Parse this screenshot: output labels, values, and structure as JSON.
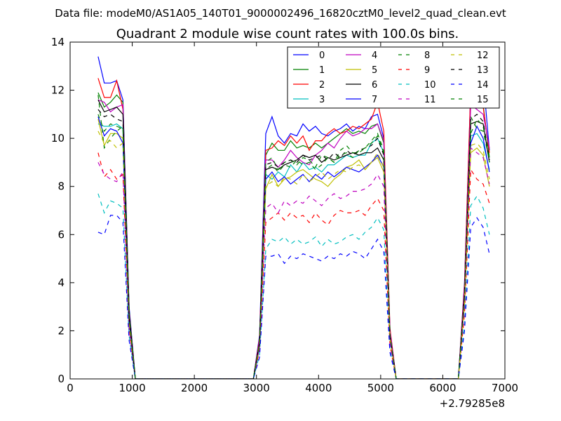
{
  "header": {
    "datafile": "Data file: modeM0/AS1A05_140T01_9000002496_16820cztM0_level2_quad_clean.evt"
  },
  "chart_data": {
    "type": "line",
    "title": "Quadrant 2 module wise count rates with 100.0s bins.",
    "xlabel": "",
    "ylabel": "",
    "x_offset_label": "+2.79285e8",
    "xlim": [
      0,
      7000
    ],
    "ylim": [
      0,
      14
    ],
    "x_ticks": [
      "0",
      "1000",
      "2000",
      "3000",
      "4000",
      "5000",
      "6000",
      "7000"
    ],
    "y_ticks": [
      "0",
      "2",
      "4",
      "6",
      "8",
      "10",
      "12",
      "14"
    ],
    "grid": false,
    "legend_position": "top-right",
    "x": [
      450,
      550,
      650,
      750,
      850,
      950,
      1050,
      1150,
      1250,
      1350,
      1450,
      1550,
      1650,
      1750,
      1850,
      1950,
      2050,
      2150,
      2250,
      2350,
      2450,
      2550,
      2650,
      2750,
      2850,
      2950,
      3050,
      3150,
      3250,
      3350,
      3450,
      3550,
      3650,
      3750,
      3850,
      3950,
      4050,
      4150,
      4250,
      4350,
      4450,
      4550,
      4650,
      4750,
      4850,
      4950,
      5050,
      5150,
      5250,
      5350,
      5450,
      5550,
      5650,
      5750,
      5850,
      5950,
      6050,
      6150,
      6250,
      6350,
      6450,
      6550,
      6650,
      6750
    ],
    "series": [
      {
        "name": "0",
        "color": "#0000ff",
        "dash": "solid",
        "values": [
          13.4,
          12.3,
          12.3,
          12.4,
          11.6,
          3.0,
          0,
          0,
          0,
          0,
          0,
          0,
          0,
          0,
          0,
          0,
          0,
          0,
          0,
          0,
          0,
          0,
          0,
          0,
          0,
          0,
          1.8,
          10.2,
          10.9,
          10.1,
          9.8,
          10.2,
          10.1,
          10.6,
          10.3,
          10.5,
          10.2,
          10.1,
          10.3,
          10.4,
          10.6,
          10.3,
          10.5,
          10.4,
          10.9,
          11.0,
          10.0,
          2.0,
          0,
          0,
          0,
          0,
          0,
          0,
          0,
          0,
          0,
          0,
          0,
          4.0,
          12.0,
          12.4,
          12.5,
          9.5
        ]
      },
      {
        "name": "1",
        "color": "#008000",
        "dash": "solid",
        "values": [
          11.9,
          11.3,
          11.5,
          11.8,
          11.5,
          2.9,
          0,
          0,
          0,
          0,
          0,
          0,
          0,
          0,
          0,
          0,
          0,
          0,
          0,
          0,
          0,
          0,
          0,
          0,
          0,
          0,
          1.6,
          9.3,
          9.8,
          9.5,
          9.5,
          9.9,
          9.6,
          9.7,
          9.6,
          9.8,
          9.6,
          9.8,
          10.0,
          10.2,
          10.4,
          10.2,
          10.3,
          10.2,
          10.5,
          10.6,
          9.8,
          1.9,
          0,
          0,
          0,
          0,
          0,
          0,
          0,
          0,
          0,
          0,
          0,
          3.8,
          11.7,
          11.3,
          11.4,
          9.2
        ]
      },
      {
        "name": "2",
        "color": "#ff0000",
        "dash": "solid",
        "values": [
          12.5,
          11.7,
          11.7,
          12.4,
          11.2,
          2.8,
          0,
          0,
          0,
          0,
          0,
          0,
          0,
          0,
          0,
          0,
          0,
          0,
          0,
          0,
          0,
          0,
          0,
          0,
          0,
          0,
          1.7,
          9.5,
          9.6,
          9.9,
          9.7,
          10.1,
          9.8,
          10.1,
          9.5,
          9.9,
          9.9,
          10.2,
          10.4,
          10.2,
          10.3,
          10.5,
          10.4,
          10.6,
          10.8,
          11.5,
          10.3,
          2.1,
          0,
          0,
          0,
          0,
          0,
          0,
          0,
          0,
          0,
          0,
          0,
          3.9,
          12.1,
          11.5,
          11.3,
          9.4
        ]
      },
      {
        "name": "3",
        "color": "#00bfbf",
        "dash": "solid",
        "values": [
          10.6,
          10.5,
          10.5,
          10.6,
          10.4,
          2.6,
          0,
          0,
          0,
          0,
          0,
          0,
          0,
          0,
          0,
          0,
          0,
          0,
          0,
          0,
          0,
          0,
          0,
          0,
          0,
          0,
          1.5,
          8.5,
          8.3,
          8.6,
          8.4,
          8.9,
          8.6,
          9.0,
          8.7,
          8.8,
          8.6,
          8.9,
          8.9,
          9.1,
          9.3,
          9.2,
          9.3,
          9.3,
          9.8,
          10.0,
          9.4,
          1.8,
          0,
          0,
          0,
          0,
          0,
          0,
          0,
          0,
          0,
          0,
          0,
          3.4,
          10.1,
          10.2,
          9.8,
          8.7
        ]
      },
      {
        "name": "4",
        "color": "#bf00bf",
        "dash": "solid",
        "values": [
          11.6,
          11.5,
          11.1,
          11.3,
          11.4,
          2.8,
          0,
          0,
          0,
          0,
          0,
          0,
          0,
          0,
          0,
          0,
          0,
          0,
          0,
          0,
          0,
          0,
          0,
          0,
          0,
          0,
          1.6,
          9.1,
          9.1,
          8.8,
          9.1,
          9.5,
          9.2,
          9.0,
          8.9,
          9.3,
          9.5,
          9.8,
          9.6,
          10.0,
          10.3,
          10.1,
          10.2,
          10.4,
          10.4,
          10.6,
          9.9,
          2.0,
          0,
          0,
          0,
          0,
          0,
          0,
          0,
          0,
          0,
          0,
          0,
          3.7,
          11.4,
          11.2,
          11.0,
          9.6
        ]
      },
      {
        "name": "5",
        "color": "#bfbf00",
        "dash": "solid",
        "values": [
          10.8,
          9.7,
          10.2,
          10.2,
          10.0,
          2.5,
          0,
          0,
          0,
          0,
          0,
          0,
          0,
          0,
          0,
          0,
          0,
          0,
          0,
          0,
          0,
          0,
          0,
          0,
          0,
          0,
          1.4,
          7.9,
          8.5,
          8.0,
          8.3,
          8.4,
          8.6,
          8.7,
          8.5,
          8.3,
          8.2,
          8.0,
          8.3,
          8.5,
          8.8,
          8.9,
          9.1,
          8.7,
          9.0,
          9.2,
          8.6,
          1.7,
          0,
          0,
          0,
          0,
          0,
          0,
          0,
          0,
          0,
          0,
          0,
          3.2,
          9.4,
          9.6,
          9.3,
          8.0
        ]
      },
      {
        "name": "6",
        "color": "#000000",
        "dash": "solid",
        "values": [
          11.6,
          11.1,
          11.2,
          11.3,
          11.0,
          2.7,
          0,
          0,
          0,
          0,
          0,
          0,
          0,
          0,
          0,
          0,
          0,
          0,
          0,
          0,
          0,
          0,
          0,
          0,
          0,
          0,
          1.5,
          8.7,
          8.8,
          8.7,
          8.9,
          9.0,
          9.1,
          9.3,
          9.2,
          9.3,
          9.0,
          9.2,
          9.1,
          9.2,
          9.3,
          9.4,
          9.3,
          9.4,
          9.4,
          9.6,
          9.1,
          1.8,
          0,
          0,
          0,
          0,
          0,
          0,
          0,
          0,
          0,
          0,
          0,
          3.5,
          10.6,
          10.7,
          10.6,
          9.0
        ]
      },
      {
        "name": "7",
        "color": "#0000ff",
        "dash": "solid",
        "values": [
          10.9,
          10.1,
          10.4,
          10.3,
          9.8,
          2.4,
          0,
          0,
          0,
          0,
          0,
          0,
          0,
          0,
          0,
          0,
          0,
          0,
          0,
          0,
          0,
          0,
          0,
          0,
          0,
          0,
          1.4,
          8.3,
          8.6,
          8.2,
          8.4,
          8.1,
          8.3,
          8.5,
          8.2,
          8.5,
          8.3,
          8.6,
          8.4,
          8.6,
          8.8,
          8.7,
          8.6,
          8.8,
          9.0,
          9.3,
          8.8,
          1.7,
          0,
          0,
          0,
          0,
          0,
          0,
          0,
          0,
          0,
          0,
          0,
          3.3,
          9.8,
          10.5,
          10.0,
          8.6
        ]
      },
      {
        "name": "8",
        "color": "#008000",
        "dash": "dash",
        "values": [
          11.8,
          9.6,
          10.0,
          10.3,
          10.5,
          2.6,
          0,
          0,
          0,
          0,
          0,
          0,
          0,
          0,
          0,
          0,
          0,
          0,
          0,
          0,
          0,
          0,
          0,
          0,
          0,
          0,
          1.5,
          9.0,
          9.2,
          8.7,
          9.0,
          9.1,
          8.9,
          9.2,
          9.1,
          8.8,
          9.3,
          9.2,
          9.0,
          9.5,
          9.7,
          9.4,
          9.4,
          9.6,
          9.9,
          10.2,
          9.5,
          1.8,
          0,
          0,
          0,
          0,
          0,
          0,
          0,
          0,
          0,
          0,
          0,
          3.4,
          10.2,
          10.8,
          10.5,
          9.0
        ]
      },
      {
        "name": "9",
        "color": "#ff0000",
        "dash": "dash",
        "values": [
          9.4,
          8.4,
          8.7,
          8.3,
          8.5,
          2.1,
          0,
          0,
          0,
          0,
          0,
          0,
          0,
          0,
          0,
          0,
          0,
          0,
          0,
          0,
          0,
          0,
          0,
          0,
          0,
          0,
          1.2,
          6.5,
          6.7,
          6.9,
          6.6,
          6.9,
          6.7,
          6.8,
          6.5,
          6.9,
          6.6,
          6.4,
          6.8,
          7.0,
          6.9,
          6.9,
          7.0,
          6.8,
          7.2,
          7.5,
          7.0,
          1.4,
          0,
          0,
          0,
          0,
          0,
          0,
          0,
          0,
          0,
          0,
          0,
          2.7,
          8.7,
          8.3,
          8.1,
          7.3
        ]
      },
      {
        "name": "10",
        "color": "#00bfbf",
        "dash": "dash",
        "values": [
          7.7,
          6.9,
          7.4,
          7.3,
          7.1,
          1.8,
          0,
          0,
          0,
          0,
          0,
          0,
          0,
          0,
          0,
          0,
          0,
          0,
          0,
          0,
          0,
          0,
          0,
          0,
          0,
          0,
          1.0,
          5.4,
          5.8,
          5.7,
          5.9,
          5.6,
          5.8,
          5.6,
          5.7,
          5.9,
          5.5,
          5.8,
          5.6,
          5.7,
          5.9,
          6.0,
          5.8,
          6.1,
          6.3,
          6.7,
          6.2,
          1.2,
          0,
          0,
          0,
          0,
          0,
          0,
          0,
          0,
          0,
          0,
          0,
          2.3,
          7.2,
          7.6,
          7.1,
          6.0
        ]
      },
      {
        "name": "11",
        "color": "#bf00bf",
        "dash": "dash",
        "values": [
          9.0,
          8.5,
          8.3,
          8.2,
          8.6,
          2.1,
          0,
          0,
          0,
          0,
          0,
          0,
          0,
          0,
          0,
          0,
          0,
          0,
          0,
          0,
          0,
          0,
          0,
          0,
          0,
          0,
          1.3,
          7.1,
          7.3,
          6.9,
          7.4,
          7.2,
          7.4,
          7.3,
          7.6,
          7.4,
          7.2,
          7.5,
          7.7,
          7.5,
          7.6,
          7.8,
          7.8,
          7.9,
          8.1,
          8.5,
          8.0,
          1.5,
          0,
          0,
          0,
          0,
          0,
          0,
          0,
          0,
          0,
          0,
          0,
          3.0,
          9.6,
          9.4,
          9.2,
          8.1
        ]
      },
      {
        "name": "12",
        "color": "#bfbf00",
        "dash": "dash",
        "values": [
          10.3,
          9.8,
          9.9,
          9.6,
          9.8,
          2.4,
          0,
          0,
          0,
          0,
          0,
          0,
          0,
          0,
          0,
          0,
          0,
          0,
          0,
          0,
          0,
          0,
          0,
          0,
          0,
          0,
          1.4,
          8.0,
          8.2,
          8.0,
          8.4,
          8.3,
          8.1,
          8.5,
          8.2,
          8.4,
          8.6,
          8.3,
          8.5,
          8.7,
          8.6,
          8.8,
          8.9,
          8.7,
          9.0,
          9.4,
          8.8,
          1.7,
          0,
          0,
          0,
          0,
          0,
          0,
          0,
          0,
          0,
          0,
          0,
          3.2,
          9.7,
          9.8,
          9.5,
          8.3
        ]
      },
      {
        "name": "13",
        "color": "#000000",
        "dash": "dash",
        "values": [
          11.2,
          10.9,
          11.0,
          10.8,
          10.7,
          2.6,
          0,
          0,
          0,
          0,
          0,
          0,
          0,
          0,
          0,
          0,
          0,
          0,
          0,
          0,
          0,
          0,
          0,
          0,
          0,
          0,
          1.5,
          8.9,
          9.0,
          8.8,
          9.0,
          9.1,
          9.0,
          9.3,
          9.1,
          9.2,
          9.3,
          9.1,
          9.4,
          9.2,
          9.5,
          9.3,
          9.5,
          9.6,
          9.7,
          10.0,
          9.3,
          1.8,
          0,
          0,
          0,
          0,
          0,
          0,
          0,
          0,
          0,
          0,
          0,
          3.5,
          10.8,
          11.0,
          10.7,
          9.1
        ]
      },
      {
        "name": "14",
        "color": "#0000ff",
        "dash": "dash",
        "values": [
          6.1,
          6.0,
          6.8,
          6.8,
          6.5,
          1.6,
          0,
          0,
          0,
          0,
          0,
          0,
          0,
          0,
          0,
          0,
          0,
          0,
          0,
          0,
          0,
          0,
          0,
          0,
          0,
          0,
          0.9,
          5.1,
          5.1,
          5.2,
          4.8,
          5.1,
          5.0,
          5.2,
          5.1,
          5.0,
          4.9,
          5.1,
          5.0,
          5.2,
          5.1,
          5.3,
          5.2,
          5.0,
          5.4,
          5.8,
          5.3,
          1.1,
          0,
          0,
          0,
          0,
          0,
          0,
          0,
          0,
          0,
          0,
          0,
          2.0,
          6.3,
          6.7,
          6.3,
          5.2
        ]
      },
      {
        "name": "15",
        "color": "#008000",
        "dash": "dash",
        "values": [
          11.0,
          10.3,
          10.6,
          10.5,
          10.4,
          2.6,
          0,
          0,
          0,
          0,
          0,
          0,
          0,
          0,
          0,
          0,
          0,
          0,
          0,
          0,
          0,
          0,
          0,
          0,
          0,
          0,
          1.5,
          8.7,
          8.9,
          8.6,
          8.9,
          8.8,
          9.1,
          8.9,
          9.0,
          8.7,
          8.9,
          9.2,
          9.0,
          9.3,
          9.4,
          9.2,
          9.5,
          9.6,
          9.8,
          10.1,
          9.4,
          1.8,
          0,
          0,
          0,
          0,
          0,
          0,
          0,
          0,
          0,
          0,
          0,
          3.4,
          10.9,
          10.4,
          10.3,
          9.1
        ]
      }
    ]
  }
}
